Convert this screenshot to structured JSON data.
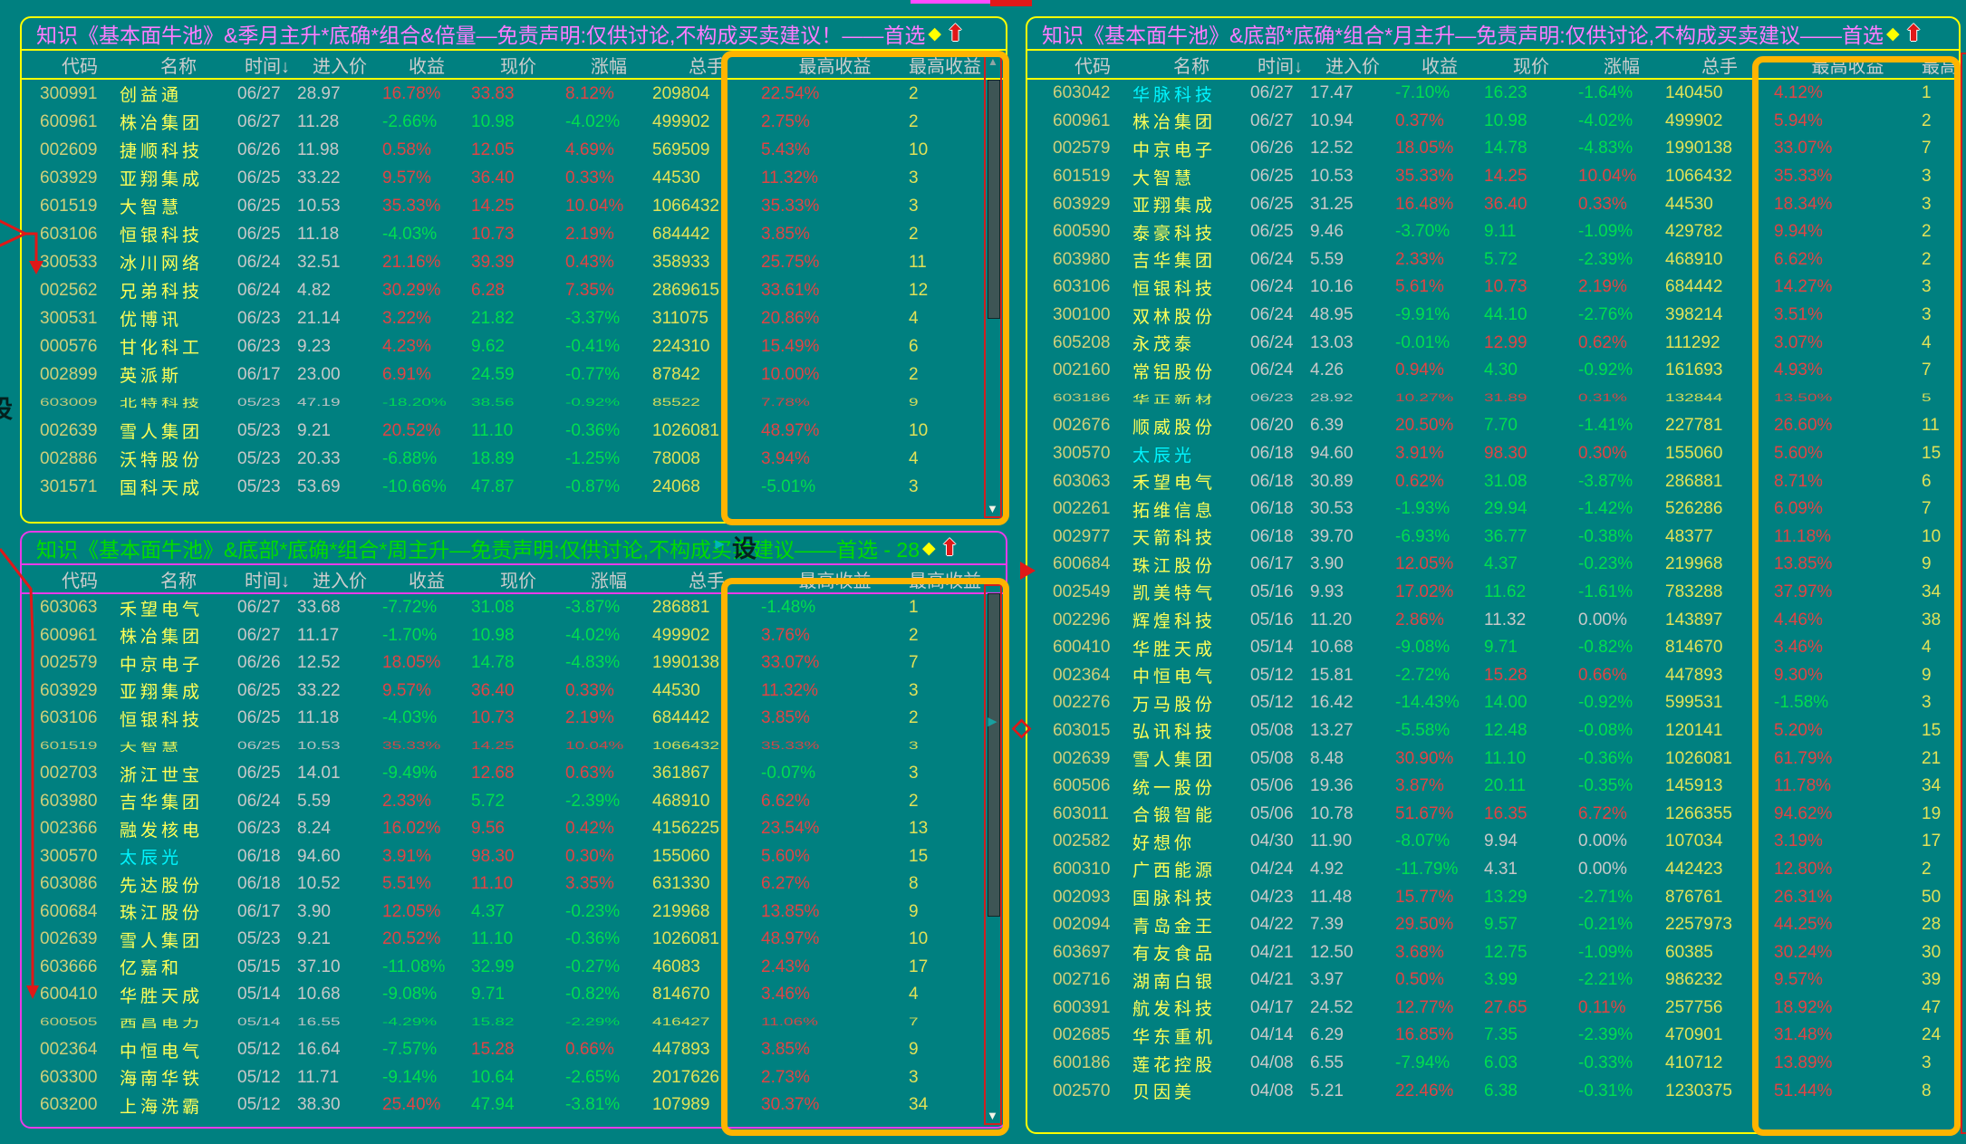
{
  "colors": {
    "background": "#008080",
    "up": "#e04444",
    "down": "#00de50",
    "flat": "#c8c8c8",
    "code": "#cfcf7a",
    "name": "#ffff57",
    "cyan": "#00f5ff",
    "vol": "#e2e257",
    "highlight_box": "#ffb400",
    "border_yellow": "#ffff00",
    "border_magenta": "#e93be9",
    "title_magenta": "#ff7cff",
    "title_green": "#00dc00",
    "annotation_red": "#e01818"
  },
  "overlays": {
    "settings_label": "设",
    "teal_arrow_icon": "►",
    "scroll_up_icon": "▲",
    "scroll_down_icon": "▼"
  },
  "panels": [
    {
      "title": "知识《基本面牛池》&季月主升*底确*组合&倍量—免责声明:仅供讨论,不构成买卖建议！——首选",
      "diamond": "◆",
      "arrow_icon": "⬆",
      "headers": [
        "代码",
        "名称",
        "时间↓",
        "进入价",
        "收益",
        "现价",
        "涨幅",
        "总手",
        "最高收益",
        "最高收益"
      ],
      "cyan_rows": [],
      "glitch_rows": [
        11
      ],
      "rows": [
        [
          "300991",
          "创益通",
          "06/27",
          "28.97",
          "16.78%",
          "33.83",
          "8.12%",
          "209804",
          "22.54%",
          "2"
        ],
        [
          "600961",
          "株冶集团",
          "06/27",
          "11.28",
          "-2.66%",
          "10.98",
          "-4.02%",
          "499902",
          "2.75%",
          "2"
        ],
        [
          "002609",
          "捷顺科技",
          "06/26",
          "11.98",
          "0.58%",
          "12.05",
          "4.69%",
          "569509",
          "5.43%",
          "10"
        ],
        [
          "603929",
          "亚翔集成",
          "06/25",
          "33.22",
          "9.57%",
          "36.40",
          "0.33%",
          "44530",
          "11.32%",
          "3"
        ],
        [
          "601519",
          "大智慧",
          "06/25",
          "10.53",
          "35.33%",
          "14.25",
          "10.04%",
          "1066432",
          "35.33%",
          "3"
        ],
        [
          "603106",
          "恒银科技",
          "06/25",
          "11.18",
          "-4.03%",
          "10.73",
          "2.19%",
          "684442",
          "3.85%",
          "2"
        ],
        [
          "300533",
          "冰川网络",
          "06/24",
          "32.51",
          "21.16%",
          "39.39",
          "0.43%",
          "358933",
          "25.75%",
          "11"
        ],
        [
          "002562",
          "兄弟科技",
          "06/24",
          "4.82",
          "30.29%",
          "6.28",
          "7.35%",
          "2869615",
          "33.61%",
          "12"
        ],
        [
          "300531",
          "优博讯",
          "06/23",
          "21.14",
          "3.22%",
          "21.82",
          "-3.37%",
          "311075",
          "20.86%",
          "4"
        ],
        [
          "000576",
          "甘化科工",
          "06/23",
          "9.23",
          "4.23%",
          "9.62",
          "-0.41%",
          "224310",
          "15.49%",
          "6"
        ],
        [
          "002899",
          "英派斯",
          "06/17",
          "23.00",
          "6.91%",
          "24.59",
          "-0.77%",
          "87842",
          "10.00%",
          "2"
        ],
        [
          "603009",
          "北特科技",
          "05/23",
          "47.19",
          "-18.20%",
          "38.56",
          "-0.92%",
          "85522",
          "7.78%",
          "9"
        ],
        [
          "002639",
          "雪人集团",
          "05/23",
          "9.21",
          "20.52%",
          "11.10",
          "-0.36%",
          "1026081",
          "48.97%",
          "10"
        ],
        [
          "002886",
          "沃特股份",
          "05/23",
          "20.33",
          "-6.88%",
          "18.89",
          "-1.25%",
          "78008",
          "3.94%",
          "4"
        ],
        [
          "301571",
          "国科天成",
          "05/23",
          "53.69",
          "-10.66%",
          "47.87",
          "-0.87%",
          "24068",
          "-5.01%",
          "3"
        ]
      ]
    },
    {
      "title": "知识《基本面牛池》&底部*底确*组合*周主升—免责声明:仅供讨论,不构成买卖建议——首选 - 28",
      "diamond": "◆",
      "arrow_icon": "⬆",
      "headers": [
        "代码",
        "名称",
        "时间↓",
        "进入价",
        "收益",
        "现价",
        "涨幅",
        "总手",
        "最高收益",
        "最高收益"
      ],
      "cyan_rows": [
        9
      ],
      "glitch_rows": [
        5,
        15
      ],
      "rows": [
        [
          "603063",
          "禾望电气",
          "06/27",
          "33.68",
          "-7.72%",
          "31.08",
          "-3.87%",
          "286881",
          "-1.48%",
          "1"
        ],
        [
          "600961",
          "株冶集团",
          "06/27",
          "11.17",
          "-1.70%",
          "10.98",
          "-4.02%",
          "499902",
          "3.76%",
          "2"
        ],
        [
          "002579",
          "中京电子",
          "06/26",
          "12.52",
          "18.05%",
          "14.78",
          "-4.83%",
          "1990138",
          "33.07%",
          "7"
        ],
        [
          "603929",
          "亚翔集成",
          "06/25",
          "33.22",
          "9.57%",
          "36.40",
          "0.33%",
          "44530",
          "11.32%",
          "3"
        ],
        [
          "603106",
          "恒银科技",
          "06/25",
          "11.18",
          "-4.03%",
          "10.73",
          "2.19%",
          "684442",
          "3.85%",
          "2"
        ],
        [
          "601519",
          "大智慧",
          "06/25",
          "10.53",
          "35.33%",
          "14.25",
          "10.04%",
          "1066432",
          "35.33%",
          "3"
        ],
        [
          "002703",
          "浙江世宝",
          "06/25",
          "14.01",
          "-9.49%",
          "12.68",
          "0.63%",
          "361867",
          "-0.07%",
          "3"
        ],
        [
          "603980",
          "吉华集团",
          "06/24",
          "5.59",
          "2.33%",
          "5.72",
          "-2.39%",
          "468910",
          "6.62%",
          "2"
        ],
        [
          "002366",
          "融发核电",
          "06/23",
          "8.24",
          "16.02%",
          "9.56",
          "0.42%",
          "4156225",
          "23.54%",
          "13"
        ],
        [
          "300570",
          "太辰光",
          "06/18",
          "94.60",
          "3.91%",
          "98.30",
          "0.30%",
          "155060",
          "5.60%",
          "15"
        ],
        [
          "603086",
          "先达股份",
          "06/18",
          "10.52",
          "5.51%",
          "11.10",
          "3.35%",
          "631330",
          "6.27%",
          "8"
        ],
        [
          "600684",
          "珠江股份",
          "06/17",
          "3.90",
          "12.05%",
          "4.37",
          "-0.23%",
          "219968",
          "13.85%",
          "9"
        ],
        [
          "002639",
          "雪人集团",
          "05/23",
          "9.21",
          "20.52%",
          "11.10",
          "-0.36%",
          "1026081",
          "48.97%",
          "10"
        ],
        [
          "603666",
          "亿嘉和",
          "05/15",
          "37.10",
          "-11.08%",
          "32.99",
          "-0.27%",
          "46083",
          "2.43%",
          "17"
        ],
        [
          "600410",
          "华胜天成",
          "05/14",
          "10.68",
          "-9.08%",
          "9.71",
          "-0.82%",
          "814670",
          "3.46%",
          "4"
        ],
        [
          "600505",
          "西昌电力",
          "05/14",
          "16.55",
          "-4.29%",
          "15.82",
          "-2.29%",
          "416427",
          "11.06%",
          "7"
        ],
        [
          "002364",
          "中恒电气",
          "05/12",
          "16.64",
          "-7.57%",
          "15.28",
          "0.66%",
          "447893",
          "3.85%",
          "9"
        ],
        [
          "603300",
          "海南华铁",
          "05/12",
          "11.71",
          "-9.14%",
          "10.64",
          "-2.65%",
          "2017626",
          "2.73%",
          "3"
        ],
        [
          "603200",
          "上海洗霸",
          "05/12",
          "38.30",
          "25.40%",
          "47.94",
          "-3.81%",
          "107989",
          "30.37%",
          "34"
        ]
      ]
    },
    {
      "title": "知识《基本面牛池》&底部*底确*组合*月主升—免责声明:仅供讨论,不构成买卖建议——首选",
      "diamond": "◆",
      "arrow_icon": "⬆",
      "headers": [
        "代码",
        "名称",
        "时间↓",
        "进入价",
        "收益",
        "现价",
        "涨幅",
        "总手",
        "最高收益",
        "最高收益"
      ],
      "cyan_rows": [
        0,
        13
      ],
      "glitch_rows": [
        11
      ],
      "rows": [
        [
          "603042",
          "华脉科技",
          "06/27",
          "17.47",
          "-7.10%",
          "16.23",
          "-1.64%",
          "140450",
          "4.12%",
          "1"
        ],
        [
          "600961",
          "株冶集团",
          "06/27",
          "10.94",
          "0.37%",
          "10.98",
          "-4.02%",
          "499902",
          "5.94%",
          "2"
        ],
        [
          "002579",
          "中京电子",
          "06/26",
          "12.52",
          "18.05%",
          "14.78",
          "-4.83%",
          "1990138",
          "33.07%",
          "7"
        ],
        [
          "601519",
          "大智慧",
          "06/25",
          "10.53",
          "35.33%",
          "14.25",
          "10.04%",
          "1066432",
          "35.33%",
          "3"
        ],
        [
          "603929",
          "亚翔集成",
          "06/25",
          "31.25",
          "16.48%",
          "36.40",
          "0.33%",
          "44530",
          "18.34%",
          "3"
        ],
        [
          "600590",
          "泰豪科技",
          "06/25",
          "9.46",
          "-3.70%",
          "9.11",
          "-1.09%",
          "429782",
          "9.94%",
          "2"
        ],
        [
          "603980",
          "吉华集团",
          "06/24",
          "5.59",
          "2.33%",
          "5.72",
          "-2.39%",
          "468910",
          "6.62%",
          "2"
        ],
        [
          "603106",
          "恒银科技",
          "06/24",
          "10.16",
          "5.61%",
          "10.73",
          "2.19%",
          "684442",
          "14.27%",
          "3"
        ],
        [
          "300100",
          "双林股份",
          "06/24",
          "48.95",
          "-9.91%",
          "44.10",
          "-2.76%",
          "398214",
          "3.51%",
          "3"
        ],
        [
          "605208",
          "永茂泰",
          "06/24",
          "13.03",
          "-0.01%",
          "12.99",
          "0.62%",
          "111292",
          "3.07%",
          "4"
        ],
        [
          "002160",
          "常铝股份",
          "06/24",
          "4.26",
          "0.94%",
          "4.30",
          "-0.92%",
          "161693",
          "4.93%",
          "7"
        ],
        [
          "603186",
          "华正新材",
          "06/23",
          "28.92",
          "10.27%",
          "31.89",
          "0.31%",
          "132844",
          "13.50%",
          "5"
        ],
        [
          "002676",
          "顺威股份",
          "06/20",
          "6.39",
          "20.50%",
          "7.70",
          "-1.41%",
          "227781",
          "26.60%",
          "11"
        ],
        [
          "300570",
          "太辰光",
          "06/18",
          "94.60",
          "3.91%",
          "98.30",
          "0.30%",
          "155060",
          "5.60%",
          "15"
        ],
        [
          "603063",
          "禾望电气",
          "06/18",
          "30.89",
          "0.62%",
          "31.08",
          "-3.87%",
          "286881",
          "8.71%",
          "6"
        ],
        [
          "002261",
          "拓维信息",
          "06/18",
          "30.53",
          "-1.93%",
          "29.94",
          "-1.42%",
          "526286",
          "6.09%",
          "7"
        ],
        [
          "002977",
          "天箭科技",
          "06/18",
          "39.70",
          "-6.93%",
          "36.77",
          "-0.38%",
          "48377",
          "11.18%",
          "10"
        ],
        [
          "600684",
          "珠江股份",
          "06/17",
          "3.90",
          "12.05%",
          "4.37",
          "-0.23%",
          "219968",
          "13.85%",
          "9"
        ],
        [
          "002549",
          "凯美特气",
          "05/16",
          "9.93",
          "17.02%",
          "11.62",
          "-1.61%",
          "783288",
          "37.97%",
          "34"
        ],
        [
          "002296",
          "辉煌科技",
          "05/16",
          "11.20",
          "2.86%",
          "11.32",
          "0.00%",
          "143897",
          "4.46%",
          "38"
        ],
        [
          "600410",
          "华胜天成",
          "05/14",
          "10.68",
          "-9.08%",
          "9.71",
          "-0.82%",
          "814670",
          "3.46%",
          "4"
        ],
        [
          "002364",
          "中恒电气",
          "05/12",
          "15.81",
          "-2.72%",
          "15.28",
          "0.66%",
          "447893",
          "9.30%",
          "9"
        ],
        [
          "002276",
          "万马股份",
          "05/12",
          "16.42",
          "-14.43%",
          "14.00",
          "-0.92%",
          "599531",
          "-1.58%",
          "3"
        ],
        [
          "603015",
          "弘讯科技",
          "05/08",
          "13.27",
          "-5.58%",
          "12.48",
          "-0.08%",
          "120141",
          "5.20%",
          "15"
        ],
        [
          "002639",
          "雪人集团",
          "05/08",
          "8.48",
          "30.90%",
          "11.10",
          "-0.36%",
          "1026081",
          "61.79%",
          "21"
        ],
        [
          "600506",
          "统一股份",
          "05/06",
          "19.36",
          "3.87%",
          "20.11",
          "-0.35%",
          "145913",
          "11.78%",
          "34"
        ],
        [
          "603011",
          "合锻智能",
          "05/06",
          "10.78",
          "51.67%",
          "16.35",
          "6.72%",
          "1266355",
          "94.62%",
          "19"
        ],
        [
          "002582",
          "好想你",
          "04/30",
          "11.90",
          "-8.07%",
          "9.94",
          "0.00%",
          "107034",
          "3.19%",
          "17"
        ],
        [
          "600310",
          "广西能源",
          "04/24",
          "4.92",
          "-11.79%",
          "4.31",
          "0.00%",
          "442423",
          "12.80%",
          "2"
        ],
        [
          "002093",
          "国脉科技",
          "04/23",
          "11.48",
          "15.77%",
          "13.29",
          "-2.71%",
          "876761",
          "26.31%",
          "50"
        ],
        [
          "002094",
          "青岛金王",
          "04/22",
          "7.39",
          "29.50%",
          "9.57",
          "-0.21%",
          "2257973",
          "44.25%",
          "28"
        ],
        [
          "603697",
          "有友食品",
          "04/21",
          "12.50",
          "3.68%",
          "12.75",
          "-1.09%",
          "60385",
          "30.24%",
          "30"
        ],
        [
          "002716",
          "湖南白银",
          "04/21",
          "3.97",
          "0.50%",
          "3.99",
          "-2.21%",
          "986232",
          "9.57%",
          "39"
        ],
        [
          "600391",
          "航发科技",
          "04/17",
          "24.52",
          "12.77%",
          "27.65",
          "0.11%",
          "257756",
          "18.92%",
          "47"
        ],
        [
          "002685",
          "华东重机",
          "04/14",
          "6.29",
          "16.85%",
          "7.35",
          "-2.39%",
          "470901",
          "31.48%",
          "24"
        ],
        [
          "600186",
          "莲花控股",
          "04/08",
          "6.55",
          "-7.94%",
          "6.03",
          "-0.33%",
          "410712",
          "13.89%",
          "3"
        ],
        [
          "002570",
          "贝因美",
          "04/08",
          "5.21",
          "22.46%",
          "6.38",
          "-0.31%",
          "1230375",
          "51.44%",
          "8"
        ]
      ]
    }
  ]
}
